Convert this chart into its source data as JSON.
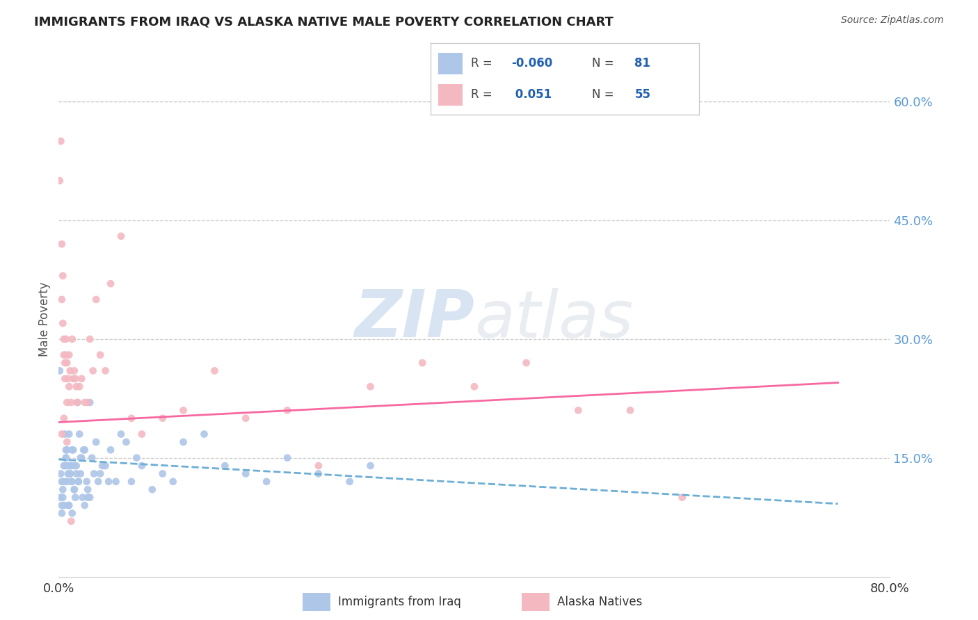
{
  "title": "IMMIGRANTS FROM IRAQ VS ALASKA NATIVE MALE POVERTY CORRELATION CHART",
  "source": "Source: ZipAtlas.com",
  "ylabel": "Male Poverty",
  "right_yticks": [
    "60.0%",
    "45.0%",
    "30.0%",
    "15.0%"
  ],
  "right_ytick_vals": [
    0.6,
    0.45,
    0.3,
    0.15
  ],
  "legend1_color": "#aec6e8",
  "legend2_color": "#f4b8c1",
  "line1_color": "#6baed6",
  "line2_color": "#f768a1",
  "watermark_zip": "ZIP",
  "watermark_atlas": "atlas",
  "xlim": [
    0.0,
    0.8
  ],
  "ylim": [
    0.0,
    0.65
  ],
  "background_color": "#ffffff",
  "title_color": "#222222",
  "source_color": "#555555",
  "right_axis_color": "#5b9bd5",
  "legend_R_color": "#2060b0",
  "blue_scatter_x": [
    0.001,
    0.002,
    0.002,
    0.003,
    0.003,
    0.004,
    0.004,
    0.005,
    0.005,
    0.006,
    0.006,
    0.007,
    0.007,
    0.008,
    0.008,
    0.009,
    0.009,
    0.01,
    0.01,
    0.011,
    0.011,
    0.012,
    0.012,
    0.013,
    0.013,
    0.014,
    0.015,
    0.015,
    0.016,
    0.017,
    0.018,
    0.019,
    0.02,
    0.021,
    0.022,
    0.024,
    0.025,
    0.027,
    0.028,
    0.03,
    0.032,
    0.034,
    0.036,
    0.038,
    0.04,
    0.042,
    0.045,
    0.048,
    0.05,
    0.055,
    0.06,
    0.065,
    0.07,
    0.075,
    0.08,
    0.09,
    0.1,
    0.11,
    0.12,
    0.14,
    0.16,
    0.18,
    0.2,
    0.22,
    0.25,
    0.28,
    0.3,
    0.003,
    0.005,
    0.007,
    0.009,
    0.011,
    0.013,
    0.015,
    0.017,
    0.019,
    0.021,
    0.023,
    0.025,
    0.028,
    0.03
  ],
  "blue_scatter_y": [
    0.26,
    0.1,
    0.13,
    0.09,
    0.12,
    0.1,
    0.11,
    0.09,
    0.14,
    0.14,
    0.18,
    0.16,
    0.15,
    0.12,
    0.16,
    0.09,
    0.13,
    0.18,
    0.09,
    0.14,
    0.13,
    0.14,
    0.12,
    0.12,
    0.16,
    0.16,
    0.11,
    0.14,
    0.1,
    0.13,
    0.22,
    0.12,
    0.18,
    0.15,
    0.15,
    0.16,
    0.16,
    0.12,
    0.1,
    0.22,
    0.15,
    0.13,
    0.17,
    0.12,
    0.13,
    0.14,
    0.14,
    0.12,
    0.16,
    0.12,
    0.18,
    0.17,
    0.12,
    0.15,
    0.14,
    0.11,
    0.13,
    0.12,
    0.17,
    0.18,
    0.14,
    0.13,
    0.12,
    0.15,
    0.13,
    0.12,
    0.14,
    0.08,
    0.12,
    0.15,
    0.14,
    0.13,
    0.08,
    0.11,
    0.14,
    0.12,
    0.13,
    0.1,
    0.09,
    0.11,
    0.1
  ],
  "pink_scatter_x": [
    0.001,
    0.002,
    0.003,
    0.003,
    0.004,
    0.004,
    0.005,
    0.005,
    0.006,
    0.006,
    0.007,
    0.007,
    0.008,
    0.008,
    0.009,
    0.01,
    0.01,
    0.011,
    0.012,
    0.013,
    0.014,
    0.015,
    0.016,
    0.017,
    0.018,
    0.02,
    0.022,
    0.025,
    0.028,
    0.03,
    0.033,
    0.036,
    0.04,
    0.045,
    0.05,
    0.06,
    0.07,
    0.08,
    0.1,
    0.12,
    0.15,
    0.18,
    0.22,
    0.25,
    0.3,
    0.35,
    0.4,
    0.45,
    0.5,
    0.55,
    0.6,
    0.003,
    0.005,
    0.008,
    0.012
  ],
  "pink_scatter_y": [
    0.5,
    0.55,
    0.42,
    0.35,
    0.38,
    0.32,
    0.28,
    0.3,
    0.27,
    0.25,
    0.28,
    0.3,
    0.22,
    0.27,
    0.25,
    0.28,
    0.24,
    0.26,
    0.22,
    0.3,
    0.25,
    0.26,
    0.25,
    0.24,
    0.22,
    0.24,
    0.25,
    0.22,
    0.22,
    0.3,
    0.26,
    0.35,
    0.28,
    0.26,
    0.37,
    0.43,
    0.2,
    0.18,
    0.2,
    0.21,
    0.26,
    0.2,
    0.21,
    0.14,
    0.24,
    0.27,
    0.24,
    0.27,
    0.21,
    0.21,
    0.1,
    0.18,
    0.2,
    0.17,
    0.07
  ],
  "line1_x": [
    0.0,
    0.75
  ],
  "line1_y": [
    0.148,
    0.092
  ],
  "line2_x": [
    0.0,
    0.75
  ],
  "line2_y": [
    0.195,
    0.245
  ]
}
